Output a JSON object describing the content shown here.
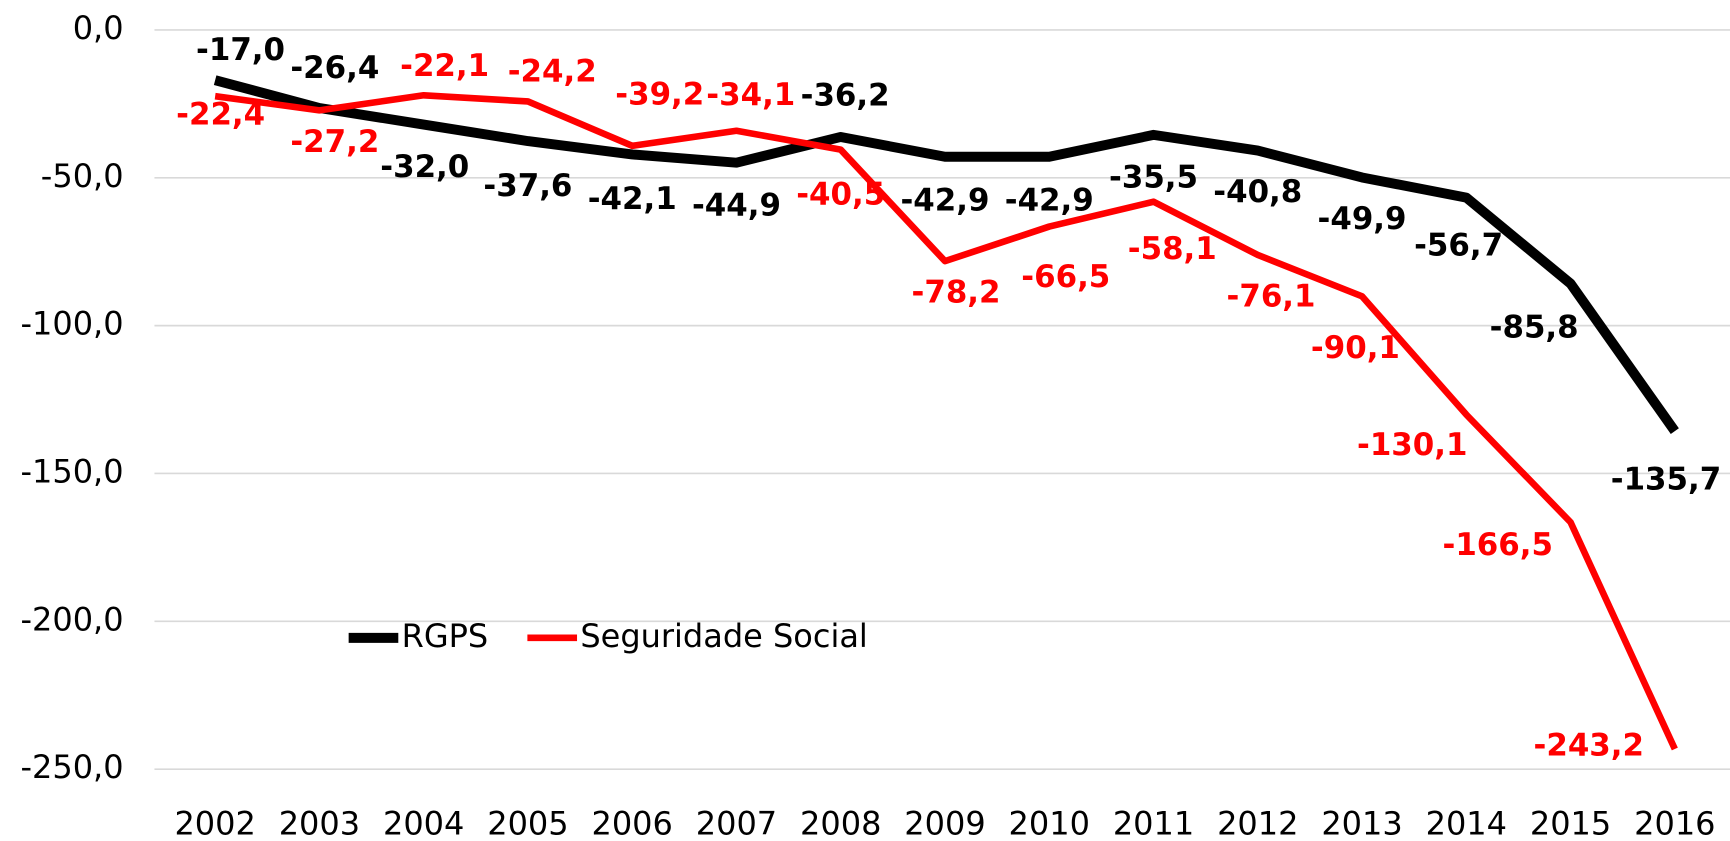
{
  "chart_data": {
    "type": "line",
    "categories": [
      "2002",
      "2003",
      "2004",
      "2005",
      "2006",
      "2007",
      "2008",
      "2009",
      "2010",
      "2011",
      "2012",
      "2013",
      "2014",
      "2015",
      "2016"
    ],
    "series": [
      {
        "name": "RGPS",
        "color": "#000000",
        "values": [
          -17.0,
          -26.4,
          -32.0,
          -37.6,
          -42.1,
          -44.9,
          -36.2,
          -42.9,
          -42.9,
          -35.5,
          -40.8,
          -49.9,
          -56.7,
          -85.8,
          -135.7
        ],
        "value_labels": [
          "-17,0",
          "-26,4",
          "-32,0",
          "-37,6",
          "-42,1",
          "-44,9",
          "-36,2",
          "-42,9",
          "-42,9",
          "-35,5",
          "-40,8",
          "-49,9",
          "-56,7",
          "-85,8",
          "-135,7"
        ]
      },
      {
        "name": "Seguridade Social",
        "color": "#ff0000",
        "values": [
          -22.4,
          -27.2,
          -22.1,
          -24.2,
          -39.2,
          -34.1,
          -40.5,
          -78.2,
          -66.5,
          -58.1,
          -76.1,
          -90.1,
          -130.1,
          -166.5,
          -243.2
        ],
        "value_labels": [
          "-22,4",
          "-27,2",
          "-22,1",
          "-24,2",
          "-39,2",
          "-34,1",
          "-40,5",
          "-78,2",
          "-66,5",
          "-58,1",
          "-76,1",
          "-90,1",
          "-130,1",
          "-166,5",
          "-243,2"
        ]
      }
    ],
    "ylim": [
      -250,
      0
    ],
    "yticks": [
      {
        "value": 0,
        "label": "0,0"
      },
      {
        "value": -50,
        "label": "-50,0"
      },
      {
        "value": -100,
        "label": "-100,0"
      },
      {
        "value": -150,
        "label": "-150,0"
      },
      {
        "value": -200,
        "label": "-200,0"
      },
      {
        "value": -250,
        "label": "-250,0"
      }
    ],
    "grid": true,
    "legend": "lower left"
  }
}
